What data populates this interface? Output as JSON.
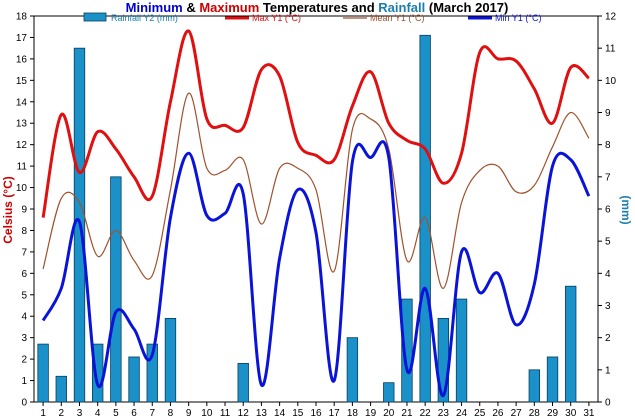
{
  "chart_data": {
    "type": "line",
    "title_parts": [
      {
        "text": "Minimum",
        "color": "#0000cc"
      },
      {
        "text": " & ",
        "color": "#000000"
      },
      {
        "text": "Maximum",
        "color": "#cc0000"
      },
      {
        "text": " Temperatures and ",
        "color": "#000000"
      },
      {
        "text": "Rainfall",
        "color": "#1a7fb0"
      },
      {
        "text": " (March 2017)",
        "color": "#000000"
      }
    ],
    "ylabel_left": "Celsius (°C)",
    "ylabel_right": "(mm)",
    "ylim_left": [
      0,
      18
    ],
    "ylim_right": [
      0,
      12
    ],
    "yticks_left": [
      "0",
      "1",
      "2",
      "3",
      "4",
      "5",
      "6",
      "7",
      "8",
      "9",
      "10",
      "11",
      "12",
      "13",
      "14",
      "15",
      "16",
      "17",
      "18"
    ],
    "yticks_right": [
      "0",
      "1",
      "2",
      "3",
      "4",
      "5",
      "6",
      "7",
      "8",
      "9",
      "10",
      "11",
      "12"
    ],
    "categories": [
      "1",
      "2",
      "3",
      "4",
      "5",
      "6",
      "7",
      "8",
      "9",
      "10",
      "11",
      "12",
      "13",
      "14",
      "15",
      "16",
      "17",
      "18",
      "19",
      "20",
      "21",
      "22",
      "23",
      "24",
      "25",
      "26",
      "27",
      "28",
      "29",
      "30",
      "31"
    ],
    "grid": false,
    "legend_position": "top",
    "series": [
      {
        "name": "Rainfall Y2 (mm)",
        "kind": "bar",
        "axis": "right",
        "color": "#1a92c9",
        "values": [
          1.8,
          0.8,
          11.0,
          1.8,
          7.0,
          1.4,
          1.8,
          2.6,
          0,
          0,
          0,
          1.2,
          0,
          0,
          0,
          0,
          0,
          2.0,
          0,
          0.6,
          3.2,
          11.4,
          2.6,
          3.2,
          0,
          0,
          0,
          1.0,
          1.4,
          3.6,
          0
        ]
      },
      {
        "name": "Max Y1 (°C)",
        "kind": "line",
        "axis": "left",
        "color": "#e01010",
        "values": [
          8.6,
          13.4,
          10.7,
          12.6,
          11.8,
          10.5,
          9.6,
          14.0,
          17.3,
          13.2,
          12.9,
          12.8,
          15.5,
          15.2,
          12.1,
          11.5,
          11.3,
          13.8,
          15.4,
          13.0,
          12.2,
          11.8,
          10.2,
          11.6,
          16.3,
          16.0,
          15.9,
          14.6,
          13.0,
          15.6,
          15.1
        ]
      },
      {
        "name": "Mean Y1 (°C)",
        "kind": "line",
        "axis": "left",
        "color": "#a0522d",
        "values": [
          6.2,
          9.5,
          9.3,
          6.8,
          8.0,
          6.6,
          5.9,
          9.9,
          14.4,
          10.9,
          10.8,
          11.3,
          8.3,
          10.9,
          10.9,
          9.9,
          6.1,
          12.7,
          13.2,
          11.8,
          6.6,
          8.6,
          5.3,
          9.3,
          10.8,
          11.0,
          9.8,
          10.1,
          11.9,
          13.5,
          12.3
        ]
      },
      {
        "name": "Min Y1 (°C)",
        "kind": "line",
        "axis": "left",
        "color": "#0a14d8",
        "values": [
          3.8,
          5.3,
          8.4,
          0.8,
          4.2,
          3.4,
          2.2,
          8.6,
          11.6,
          8.7,
          8.8,
          9.7,
          0.8,
          6.7,
          9.9,
          7.9,
          1.0,
          11.2,
          11.4,
          11.4,
          1.5,
          5.3,
          0.3,
          7.0,
          5.1,
          6.0,
          3.6,
          5.5,
          11.0,
          11.3,
          9.6
        ]
      }
    ]
  }
}
